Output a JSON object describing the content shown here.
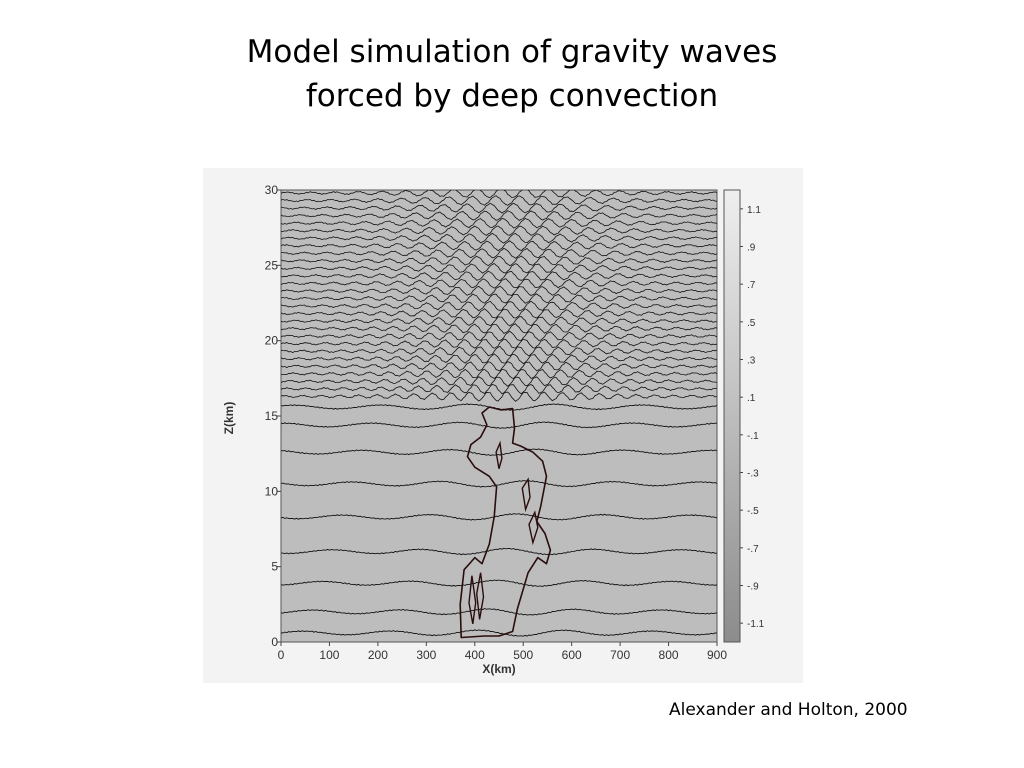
{
  "slide": {
    "title_line1": "Model simulation of gravity waves",
    "title_line2": "forced by deep convection",
    "citation": "Alexander and Holton, 2000"
  },
  "chart_data": {
    "type": "heatmap",
    "title": "",
    "xlabel": "X(km)",
    "ylabel": "Z(km)",
    "xlim": [
      0,
      900
    ],
    "ylim": [
      0,
      30
    ],
    "x_ticks": [
      "0",
      "100",
      "200",
      "300",
      "400",
      "500",
      "600",
      "700",
      "800",
      "900"
    ],
    "y_ticks": [
      "0",
      "5",
      "10",
      "15",
      "20",
      "25",
      "30"
    ],
    "colorbar_ticks": [
      "1.1",
      ".9",
      ".7",
      ".5",
      ".3",
      ".1",
      "-.1",
      "-.3",
      "-.5",
      "-.7",
      "-.9",
      "-1.1"
    ],
    "colorbar_range": [
      -1.2,
      1.2
    ],
    "contour_lines": "isentropes, densely spaced above ~16 km and rippled by gravity waves; widely spaced below",
    "cloud_region": "convective cloud outline spanning roughly X 370–560 km, Z 0–16 km",
    "colors": {
      "background": "#bdbdbd",
      "contour": "#111111",
      "cloud": "#2a0d0d"
    }
  }
}
